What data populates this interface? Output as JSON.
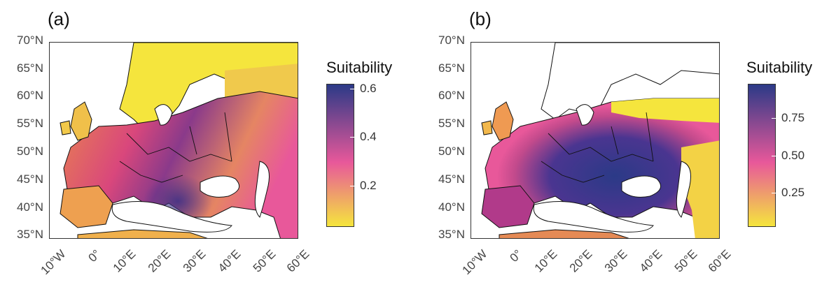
{
  "panels": [
    {
      "label": "(a)",
      "legend_title": "Suitability",
      "legend_ticks": [
        "0.6",
        "0.4",
        "0.2"
      ],
      "legend_tick_values": [
        0.6,
        0.4,
        0.2
      ],
      "legend_range": [
        0.03,
        0.62
      ]
    },
    {
      "label": "(b)",
      "legend_title": "Suitability",
      "legend_ticks": [
        "0.75",
        "0.50",
        "0.25"
      ],
      "legend_tick_values": [
        0.75,
        0.5,
        0.25
      ],
      "legend_range": [
        0.02,
        0.98
      ]
    }
  ],
  "axes": {
    "y_ticks": [
      "70°N",
      "65°N",
      "60°N",
      "55°N",
      "50°N",
      "45°N",
      "40°N",
      "35°N"
    ],
    "x_ticks": [
      "10°W",
      "0°",
      "10°E",
      "20°E",
      "30°E",
      "40°E",
      "50°E",
      "60°E"
    ],
    "lon_range": [
      -12,
      60
    ],
    "lat_range": [
      34,
      71
    ]
  },
  "colors": {
    "scale_low": "#f5e53d",
    "scale_mid": "#e8589a",
    "scale_high": "#2b3a87",
    "land_outline": "#111111",
    "water": "#ffffff"
  }
}
